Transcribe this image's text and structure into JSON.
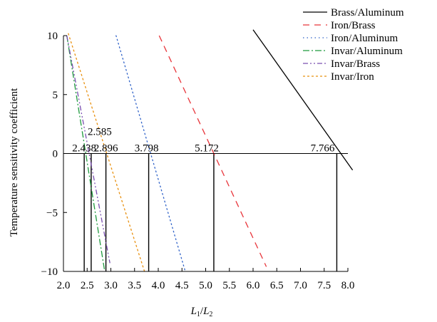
{
  "chart_data": {
    "type": "line",
    "ylabel": "Temperature sensitivity coefficient",
    "xlabel_main": "L",
    "xlabel_sub1": "1",
    "xlabel_slash": "/",
    "xlabel_sub2": "2",
    "xlim": [
      2.0,
      8.0
    ],
    "ylim": [
      -10,
      10
    ],
    "x_ticks": [
      2.0,
      2.5,
      3.0,
      3.5,
      4.0,
      4.5,
      5.0,
      5.5,
      6.0,
      6.5,
      7.0,
      7.5,
      8.0
    ],
    "x_tick_labels": [
      "2.0",
      "2.5",
      "3.0",
      "3.5",
      "4.0",
      "4.5",
      "5.0",
      "5.5",
      "6.0",
      "6.5",
      "7.0",
      "7.5",
      "8.0"
    ],
    "y_ticks": [
      -10,
      -5,
      0,
      5,
      10
    ],
    "y_tick_labels": [
      "−10",
      "−5",
      "0",
      "5",
      "10"
    ],
    "legend_position": "top-right",
    "series": [
      {
        "name": "Brass/Aluminum",
        "color": "#000000",
        "style": "solid",
        "x": [
          6.0,
          8.1
        ],
        "y": [
          10.5,
          -1.4
        ]
      },
      {
        "name": "Iron/Brass",
        "color": "#e8343a",
        "style": "dashed",
        "x": [
          4.02,
          6.28
        ],
        "y": [
          10.0,
          -9.6
        ]
      },
      {
        "name": "Iron/Aluminum",
        "color": "#2f62c8",
        "style": "dotted",
        "x": [
          3.11,
          4.57
        ],
        "y": [
          10.0,
          -10.0
        ]
      },
      {
        "name": "Invar/Aluminum",
        "color": "#1f9a3e",
        "style": "dashdot",
        "x": [
          2.07,
          2.87
        ],
        "y": [
          10.0,
          -10.0
        ]
      },
      {
        "name": "Invar/Brass",
        "color": "#7a4fb0",
        "style": "dashdotdot",
        "x": [
          2.07,
          2.98
        ],
        "y": [
          10.0,
          -9.3
        ]
      },
      {
        "name": "Invar/Iron",
        "color": "#e8900f",
        "style": "shortdash",
        "x": [
          2.1,
          3.71
        ],
        "y": [
          10.2,
          -10.0
        ]
      }
    ],
    "zero_line": {
      "y": 0,
      "color": "#000000"
    },
    "vertical_markers": [
      {
        "x": 2.438,
        "label": "2.438"
      },
      {
        "x": 2.585,
        "label": "2.585"
      },
      {
        "x": 2.896,
        "label": "2.896"
      },
      {
        "x": 3.798,
        "label": "3.798"
      },
      {
        "x": 5.172,
        "label": "5.172"
      },
      {
        "x": 7.766,
        "label": "7.766"
      }
    ]
  }
}
